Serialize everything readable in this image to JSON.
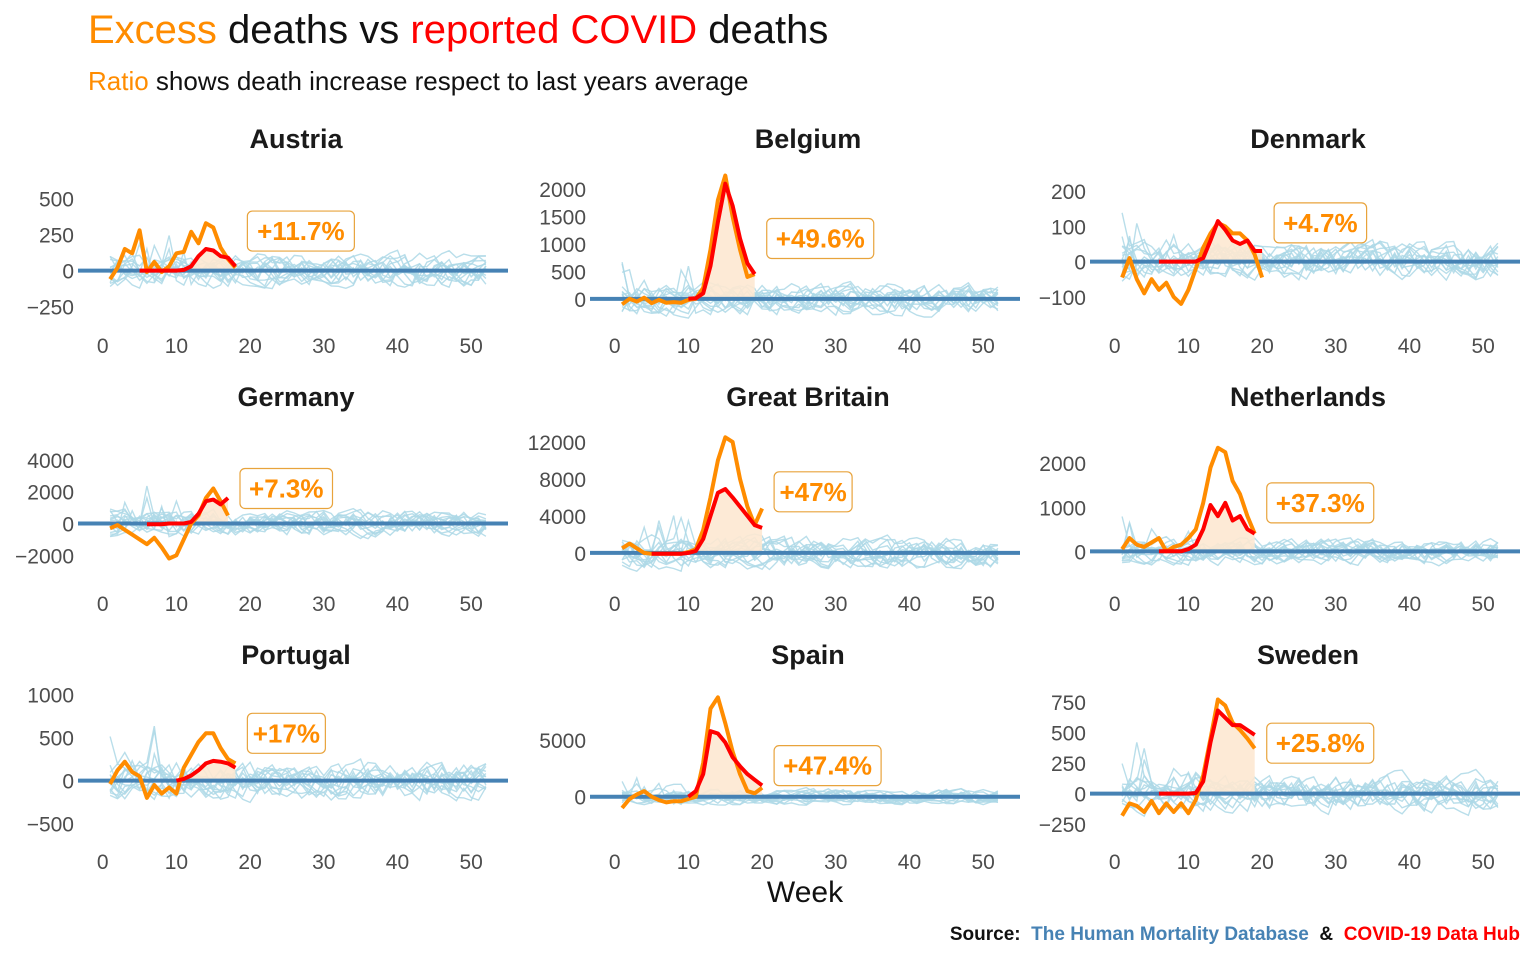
{
  "title": {
    "part1": "Excess",
    "part2": " deaths vs ",
    "part3": "reported COVID",
    "part4": " deaths"
  },
  "subtitle": {
    "part1": "Ratio",
    "part2": " shows death increase respect to last years average"
  },
  "xlabel": "Week",
  "source": {
    "label": "Source:",
    "db1": "The Human Mortality Database",
    "amp": "&",
    "db2": "COVID-19 Data Hub"
  },
  "colors": {
    "excess": "#ff8c00",
    "covid": "#ff0000",
    "baseline": "#4682b4",
    "history": "#add8e6",
    "fill": "#fde8d2",
    "label_border": "#e8a33c"
  },
  "chart_data": [
    {
      "type": "line",
      "title": "Austria",
      "ratio_label": "+11.7%",
      "xlim": [
        -2,
        55
      ],
      "ylim": [
        -330,
        700
      ],
      "yticks": [
        -250,
        0,
        250,
        500
      ],
      "xticks": [
        0,
        10,
        20,
        30,
        40,
        50
      ],
      "excess": {
        "x": [
          1,
          2,
          3,
          4,
          5,
          6,
          7,
          8,
          9,
          10,
          11,
          12,
          13,
          14,
          15,
          16,
          17,
          18
        ],
        "y": [
          -60,
          20,
          150,
          120,
          280,
          -10,
          60,
          -10,
          30,
          120,
          130,
          270,
          190,
          330,
          300,
          160,
          80,
          20
        ]
      },
      "covid": {
        "x": [
          5,
          6,
          7,
          8,
          9,
          10,
          11,
          12,
          13,
          14,
          15,
          16,
          17,
          18
        ],
        "y": [
          0,
          0,
          0,
          0,
          0,
          0,
          5,
          30,
          100,
          150,
          140,
          100,
          90,
          30
        ]
      }
    },
    {
      "type": "line",
      "title": "Belgium",
      "ratio_label": "+49.6%",
      "xlim": [
        -2,
        55
      ],
      "ylim": [
        -350,
        2350
      ],
      "yticks": [
        0,
        500,
        1000,
        1500,
        2000
      ],
      "xticks": [
        0,
        10,
        20,
        30,
        40,
        50
      ],
      "excess": {
        "x": [
          1,
          2,
          3,
          4,
          5,
          6,
          7,
          8,
          9,
          10,
          11,
          12,
          13,
          14,
          15,
          16,
          17,
          18,
          19
        ],
        "y": [
          -100,
          0,
          -50,
          20,
          -80,
          -20,
          -70,
          -60,
          -70,
          -20,
          0,
          200,
          900,
          1800,
          2250,
          1500,
          900,
          400,
          450
        ]
      },
      "covid": {
        "x": [
          10,
          11,
          12,
          13,
          14,
          15,
          16,
          17,
          18,
          19
        ],
        "y": [
          0,
          10,
          100,
          600,
          1400,
          2100,
          1700,
          1100,
          650,
          450
        ]
      }
    },
    {
      "type": "line",
      "title": "Denmark",
      "ratio_label": "+4.7%",
      "xlim": [
        -2,
        55
      ],
      "ylim": [
        -160,
        260
      ],
      "yticks": [
        -100,
        0,
        100,
        200
      ],
      "xticks": [
        0,
        10,
        20,
        30,
        40,
        50
      ],
      "excess": {
        "x": [
          1,
          2,
          3,
          4,
          5,
          6,
          7,
          8,
          9,
          10,
          11,
          12,
          13,
          14,
          15,
          16,
          17,
          18,
          19,
          20
        ],
        "y": [
          -45,
          10,
          -50,
          -90,
          -50,
          -80,
          -60,
          -100,
          -120,
          -80,
          -20,
          40,
          80,
          110,
          100,
          80,
          80,
          60,
          20,
          -45
        ]
      },
      "covid": {
        "x": [
          6,
          7,
          8,
          9,
          10,
          11,
          12,
          13,
          14,
          15,
          16,
          17,
          18,
          19,
          20
        ],
        "y": [
          0,
          0,
          0,
          0,
          0,
          0,
          10,
          60,
          115,
          90,
          60,
          50,
          60,
          30,
          30
        ]
      }
    },
    {
      "type": "line",
      "title": "Germany",
      "ratio_label": "+7.3%",
      "xlim": [
        -2,
        55
      ],
      "ylim": [
        -3300,
        6000
      ],
      "yticks": [
        -2000,
        0,
        2000,
        4000
      ],
      "xticks": [
        0,
        10,
        20,
        30,
        40,
        50
      ],
      "excess": {
        "x": [
          1,
          2,
          3,
          4,
          5,
          6,
          7,
          8,
          9,
          10,
          11,
          12,
          13,
          14,
          15,
          16,
          17
        ],
        "y": [
          -300,
          -100,
          -400,
          -700,
          -1000,
          -1300,
          -900,
          -1500,
          -2200,
          -2000,
          -1000,
          0,
          500,
          1600,
          2200,
          1400,
          500
        ]
      },
      "covid": {
        "x": [
          6,
          7,
          8,
          9,
          10,
          11,
          12,
          13,
          14,
          15,
          16,
          17
        ],
        "y": [
          -50,
          -50,
          -50,
          0,
          0,
          0,
          100,
          600,
          1400,
          1500,
          1200,
          1600
        ]
      }
    },
    {
      "type": "line",
      "title": "Great Britain",
      "ratio_label": "+47%",
      "xlim": [
        -2,
        55
      ],
      "ylim": [
        -2500,
        13500
      ],
      "yticks": [
        0,
        4000,
        8000,
        12000
      ],
      "xticks": [
        0,
        10,
        20,
        30,
        40,
        50
      ],
      "excess": {
        "x": [
          1,
          2,
          3,
          4,
          5,
          6,
          7,
          8,
          9,
          10,
          11,
          12,
          13,
          14,
          15,
          16,
          17,
          18,
          19,
          20
        ],
        "y": [
          500,
          1000,
          500,
          0,
          -100,
          -100,
          -100,
          -100,
          -100,
          100,
          400,
          2500,
          6000,
          10000,
          12500,
          12000,
          8000,
          5000,
          3000,
          4800
        ]
      },
      "covid": {
        "x": [
          5,
          6,
          7,
          8,
          9,
          10,
          11,
          12,
          13,
          14,
          15,
          16,
          17,
          18,
          19,
          20
        ],
        "y": [
          -100,
          -100,
          -100,
          -100,
          -100,
          0,
          200,
          1500,
          4000,
          6500,
          6900,
          6000,
          5000,
          4000,
          3000,
          2700
        ]
      }
    },
    {
      "type": "line",
      "title": "Netherlands",
      "ratio_label": "+37.3%",
      "xlim": [
        -2,
        55
      ],
      "ylim": [
        -560,
        2800
      ],
      "yticks": [
        0,
        1000,
        2000
      ],
      "xticks": [
        0,
        10,
        20,
        30,
        40,
        50
      ],
      "excess": {
        "x": [
          1,
          2,
          3,
          4,
          5,
          6,
          7,
          8,
          9,
          10,
          11,
          12,
          13,
          14,
          15,
          16,
          17,
          18,
          19
        ],
        "y": [
          50,
          300,
          150,
          100,
          200,
          300,
          0,
          100,
          150,
          300,
          500,
          1100,
          1900,
          2350,
          2250,
          1600,
          1300,
          800,
          400
        ]
      },
      "covid": {
        "x": [
          6,
          7,
          8,
          9,
          10,
          11,
          12,
          13,
          14,
          15,
          16,
          17,
          18,
          19
        ],
        "y": [
          0,
          0,
          0,
          0,
          50,
          150,
          500,
          1050,
          800,
          1100,
          700,
          800,
          500,
          400
        ]
      }
    },
    {
      "type": "line",
      "title": "Portugal",
      "ratio_label": "+17%",
      "xlim": [
        -2,
        55
      ],
      "ylim": [
        -620,
        1100
      ],
      "yticks": [
        -500,
        0,
        500,
        1000
      ],
      "xticks": [
        0,
        10,
        20,
        30,
        40,
        50
      ],
      "excess": {
        "x": [
          1,
          2,
          3,
          4,
          5,
          6,
          7,
          8,
          9,
          10,
          11,
          12,
          13,
          14,
          15,
          16,
          17,
          18
        ],
        "y": [
          -40,
          120,
          220,
          100,
          50,
          -200,
          -50,
          -150,
          -80,
          -150,
          150,
          300,
          450,
          550,
          550,
          380,
          250,
          200
        ]
      },
      "covid": {
        "x": [
          10,
          11,
          12,
          13,
          14,
          15,
          16,
          17,
          18
        ],
        "y": [
          0,
          20,
          60,
          120,
          200,
          230,
          220,
          200,
          150
        ]
      }
    },
    {
      "type": "line",
      "title": "Spain",
      "ratio_label": "+47.4%",
      "xlim": [
        -2,
        55
      ],
      "ylim": [
        -3300,
        9800
      ],
      "yticks": [
        0,
        5000
      ],
      "xticks": [
        0,
        10,
        20,
        30,
        40,
        50
      ],
      "excess": {
        "x": [
          1,
          2,
          3,
          4,
          5,
          6,
          7,
          8,
          9,
          10,
          11,
          12,
          13,
          14,
          15,
          16,
          17,
          18,
          19,
          20
        ],
        "y": [
          -1000,
          -200,
          200,
          500,
          0,
          -300,
          -500,
          -400,
          -400,
          -200,
          0,
          3000,
          7800,
          8800,
          6500,
          4000,
          2000,
          500,
          300,
          800
        ]
      },
      "covid": {
        "x": [
          10,
          11,
          12,
          13,
          14,
          15,
          16,
          17,
          18,
          19,
          20
        ],
        "y": [
          0,
          500,
          2000,
          5800,
          5600,
          4800,
          3500,
          2700,
          2000,
          1500,
          1000
        ]
      }
    },
    {
      "type": "line",
      "title": "Sweden",
      "ratio_label": "+25.8%",
      "xlim": [
        -2,
        55
      ],
      "ylim": [
        -330,
        880
      ],
      "yticks": [
        -250,
        0,
        250,
        500,
        750
      ],
      "xticks": [
        0,
        10,
        20,
        30,
        40,
        50
      ],
      "excess": {
        "x": [
          1,
          2,
          3,
          4,
          5,
          6,
          7,
          8,
          9,
          10,
          11,
          12,
          13,
          14,
          15,
          16,
          17,
          18,
          19
        ],
        "y": [
          -180,
          -80,
          -100,
          -150,
          -60,
          -160,
          -80,
          -150,
          -80,
          -160,
          -50,
          150,
          450,
          770,
          720,
          580,
          520,
          450,
          370
        ]
      },
      "covid": {
        "x": [
          6,
          7,
          8,
          9,
          10,
          11,
          12,
          13,
          14,
          15,
          16,
          17,
          18,
          19
        ],
        "y": [
          0,
          0,
          0,
          0,
          0,
          5,
          100,
          420,
          680,
          620,
          560,
          560,
          520,
          480
        ]
      }
    }
  ]
}
